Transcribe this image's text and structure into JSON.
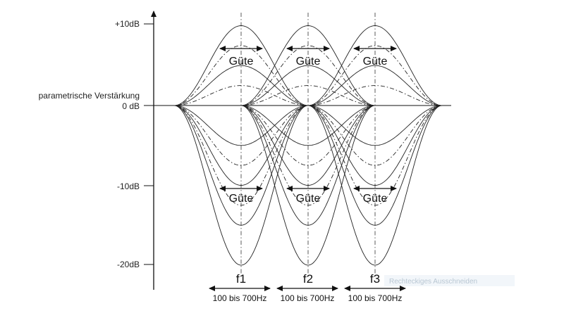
{
  "yaxis": {
    "title": "parametrische Verstärkung",
    "ticks": [
      "+10dB",
      "0 dB",
      "-10dB",
      "-20dB"
    ],
    "tick_values": [
      10,
      0,
      -10,
      -20
    ]
  },
  "bands": [
    {
      "label": "f1",
      "range": "100 bis 700Hz",
      "q_label": "Güte"
    },
    {
      "label": "f2",
      "range": "100 bis 700Hz",
      "q_label": "Güte"
    },
    {
      "label": "f3",
      "range": "100 bis 700Hz",
      "q_label": "Güte"
    }
  ],
  "gains_db": [
    10,
    7.5,
    5,
    2.5,
    -5,
    -7.5,
    -10,
    -12.5,
    -15,
    -20
  ],
  "watermark": "Rechteckiges Ausschneiden",
  "colors": {
    "ink": "#111111",
    "watermark_bg": "#f2f6fa",
    "watermark_text": "#b9c7d3"
  }
}
